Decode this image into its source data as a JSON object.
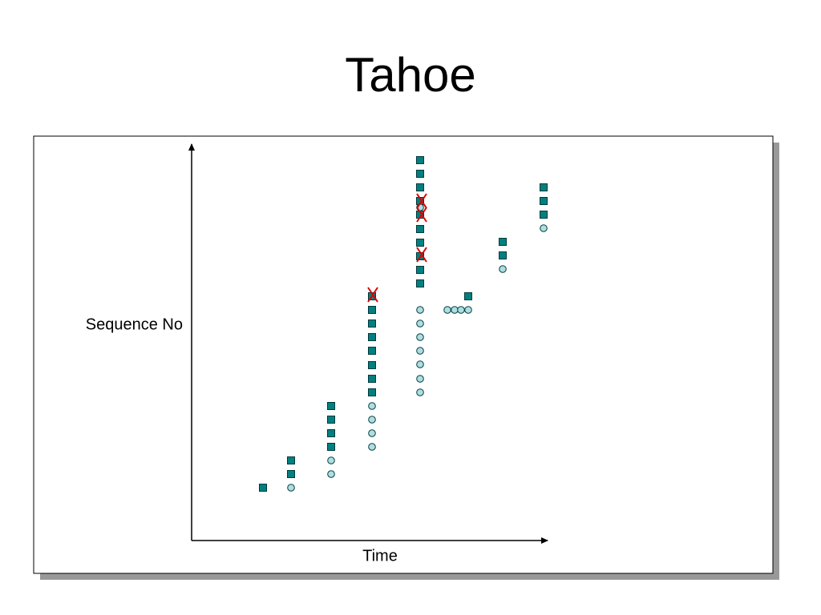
{
  "title": "Tahoe",
  "diagram": {
    "y_label": "Sequence No",
    "x_label": "Time"
  }
}
